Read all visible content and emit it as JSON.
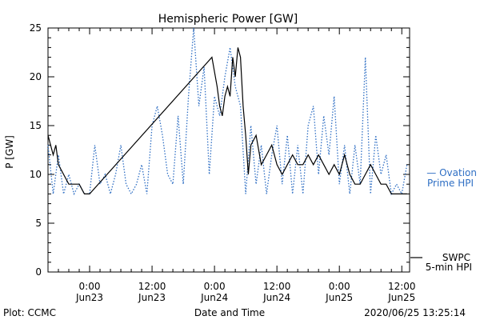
{
  "chart_data": {
    "type": "line",
    "title": "Hemispheric Power [GW]",
    "ylabel": "P [GW]",
    "xlabel": "Date and Time",
    "ylim": [
      0,
      25
    ],
    "xlim": [
      "2020-06-22 16:00",
      "2020-06-25 13:30"
    ],
    "yticks": [
      0,
      5,
      10,
      15,
      20,
      25
    ],
    "xticks": [
      {
        "time": "2020-06-23 00:00",
        "line1": "0:00",
        "line2": "Jun23"
      },
      {
        "time": "2020-06-23 12:00",
        "line1": "12:00",
        "line2": "Jun23"
      },
      {
        "time": "2020-06-24 00:00",
        "line1": "0:00",
        "line2": "Jun24"
      },
      {
        "time": "2020-06-24 12:00",
        "line1": "12:00",
        "line2": "Jun24"
      },
      {
        "time": "2020-06-25 00:00",
        "line1": "0:00",
        "line2": "Jun25"
      },
      {
        "time": "2020-06-25 12:00",
        "line1": "12:00",
        "line2": "Jun25"
      }
    ],
    "grid": false,
    "legend_placement": "right",
    "series": [
      {
        "name": "Ovation Prime HPI",
        "legend_lines": [
          "— Ovation",
          "Prime HPI"
        ],
        "color": "#2f6fc4",
        "style": "dotted",
        "points": [
          [
            "2020-06-22 16:00",
            13
          ],
          [
            "2020-06-22 17:00",
            8
          ],
          [
            "2020-06-22 18:00",
            12
          ],
          [
            "2020-06-22 19:00",
            8
          ],
          [
            "2020-06-22 20:00",
            10
          ],
          [
            "2020-06-22 21:00",
            8
          ],
          [
            "2020-06-22 22:00",
            9
          ],
          [
            "2020-06-22 23:00",
            8
          ],
          [
            "2020-06-23 00:00",
            8
          ],
          [
            "2020-06-23 01:00",
            13
          ],
          [
            "2020-06-23 02:00",
            9
          ],
          [
            "2020-06-23 03:00",
            10
          ],
          [
            "2020-06-23 04:00",
            8
          ],
          [
            "2020-06-23 05:00",
            10
          ],
          [
            "2020-06-23 06:00",
            13
          ],
          [
            "2020-06-23 07:00",
            9
          ],
          [
            "2020-06-23 08:00",
            8
          ],
          [
            "2020-06-23 09:00",
            9
          ],
          [
            "2020-06-23 10:00",
            11
          ],
          [
            "2020-06-23 11:00",
            8
          ],
          [
            "2020-06-23 12:00",
            15
          ],
          [
            "2020-06-23 13:00",
            17
          ],
          [
            "2020-06-23 14:00",
            14
          ],
          [
            "2020-06-23 15:00",
            10
          ],
          [
            "2020-06-23 16:00",
            9
          ],
          [
            "2020-06-23 17:00",
            16
          ],
          [
            "2020-06-23 18:00",
            9
          ],
          [
            "2020-06-23 19:00",
            18
          ],
          [
            "2020-06-23 20:00",
            25
          ],
          [
            "2020-06-23 21:00",
            17
          ],
          [
            "2020-06-23 22:00",
            21
          ],
          [
            "2020-06-23 23:00",
            10
          ],
          [
            "2020-06-24 00:00",
            18
          ],
          [
            "2020-06-24 01:00",
            16
          ],
          [
            "2020-06-24 02:00",
            20
          ],
          [
            "2020-06-24 03:00",
            23
          ],
          [
            "2020-06-24 04:00",
            19
          ],
          [
            "2020-06-24 05:00",
            17
          ],
          [
            "2020-06-24 06:00",
            8
          ],
          [
            "2020-06-24 07:00",
            15
          ],
          [
            "2020-06-24 08:00",
            9
          ],
          [
            "2020-06-24 09:00",
            13
          ],
          [
            "2020-06-24 10:00",
            8
          ],
          [
            "2020-06-24 11:00",
            12
          ],
          [
            "2020-06-24 12:00",
            15
          ],
          [
            "2020-06-24 13:00",
            9
          ],
          [
            "2020-06-24 14:00",
            14
          ],
          [
            "2020-06-24 15:00",
            8
          ],
          [
            "2020-06-24 16:00",
            13
          ],
          [
            "2020-06-24 17:00",
            8
          ],
          [
            "2020-06-24 18:00",
            15
          ],
          [
            "2020-06-24 19:00",
            17
          ],
          [
            "2020-06-24 20:00",
            10
          ],
          [
            "2020-06-24 21:00",
            16
          ],
          [
            "2020-06-24 22:00",
            12
          ],
          [
            "2020-06-24 23:00",
            18
          ],
          [
            "2020-06-25 00:00",
            9
          ],
          [
            "2020-06-25 01:00",
            13
          ],
          [
            "2020-06-25 02:00",
            8
          ],
          [
            "2020-06-25 03:00",
            13
          ],
          [
            "2020-06-25 04:00",
            9
          ],
          [
            "2020-06-25 05:00",
            22
          ],
          [
            "2020-06-25 06:00",
            8
          ],
          [
            "2020-06-25 07:00",
            14
          ],
          [
            "2020-06-25 08:00",
            10
          ],
          [
            "2020-06-25 09:00",
            12
          ],
          [
            "2020-06-25 10:00",
            8
          ],
          [
            "2020-06-25 11:00",
            9
          ],
          [
            "2020-06-25 12:00",
            8
          ],
          [
            "2020-06-25 13:00",
            11
          ]
        ]
      },
      {
        "name": "SWPC 5-min HPI",
        "legend_lines": [
          "SWPC",
          "5-min HPI"
        ],
        "color": "#000000",
        "style": "solid",
        "points": [
          [
            "2020-06-22 16:00",
            14
          ],
          [
            "2020-06-22 17:00",
            12
          ],
          [
            "2020-06-22 17:30",
            13
          ],
          [
            "2020-06-22 18:00",
            11
          ],
          [
            "2020-06-22 19:00",
            10
          ],
          [
            "2020-06-22 20:00",
            9
          ],
          [
            "2020-06-22 21:00",
            9
          ],
          [
            "2020-06-22 22:00",
            9
          ],
          [
            "2020-06-22 23:00",
            8
          ],
          [
            "2020-06-23 00:00",
            8
          ],
          [
            "2020-06-23 23:30",
            22
          ],
          [
            "2020-06-24 00:30",
            19
          ],
          [
            "2020-06-24 01:00",
            17
          ],
          [
            "2020-06-24 01:30",
            16
          ],
          [
            "2020-06-24 02:00",
            18
          ],
          [
            "2020-06-24 02:30",
            19
          ],
          [
            "2020-06-24 03:00",
            18
          ],
          [
            "2020-06-24 03:30",
            22
          ],
          [
            "2020-06-24 04:00",
            20
          ],
          [
            "2020-06-24 04:30",
            23
          ],
          [
            "2020-06-24 05:00",
            22
          ],
          [
            "2020-06-24 05:30",
            17
          ],
          [
            "2020-06-24 06:00",
            14
          ],
          [
            "2020-06-24 06:30",
            10
          ],
          [
            "2020-06-24 07:00",
            13
          ],
          [
            "2020-06-24 08:00",
            14
          ],
          [
            "2020-06-24 09:00",
            11
          ],
          [
            "2020-06-24 10:00",
            12
          ],
          [
            "2020-06-24 11:00",
            13
          ],
          [
            "2020-06-24 12:00",
            11
          ],
          [
            "2020-06-24 13:00",
            10
          ],
          [
            "2020-06-24 14:00",
            11
          ],
          [
            "2020-06-24 15:00",
            12
          ],
          [
            "2020-06-24 16:00",
            11
          ],
          [
            "2020-06-24 17:00",
            11
          ],
          [
            "2020-06-24 18:00",
            12
          ],
          [
            "2020-06-24 19:00",
            11
          ],
          [
            "2020-06-24 20:00",
            12
          ],
          [
            "2020-06-24 21:00",
            11
          ],
          [
            "2020-06-24 22:00",
            10
          ],
          [
            "2020-06-24 23:00",
            11
          ],
          [
            "2020-06-25 00:00",
            10
          ],
          [
            "2020-06-25 01:00",
            12
          ],
          [
            "2020-06-25 02:00",
            10
          ],
          [
            "2020-06-25 03:00",
            9
          ],
          [
            "2020-06-25 04:00",
            9
          ],
          [
            "2020-06-25 05:00",
            10
          ],
          [
            "2020-06-25 06:00",
            11
          ],
          [
            "2020-06-25 07:00",
            10
          ],
          [
            "2020-06-25 08:00",
            9
          ],
          [
            "2020-06-25 09:00",
            9
          ],
          [
            "2020-06-25 10:00",
            8
          ],
          [
            "2020-06-25 11:00",
            8
          ],
          [
            "2020-06-25 12:00",
            8
          ],
          [
            "2020-06-25 13:00",
            8
          ]
        ]
      }
    ]
  },
  "footer": {
    "plot_credit": "Plot: CCMC",
    "timestamp": "2020/06/25 13:25:14"
  }
}
